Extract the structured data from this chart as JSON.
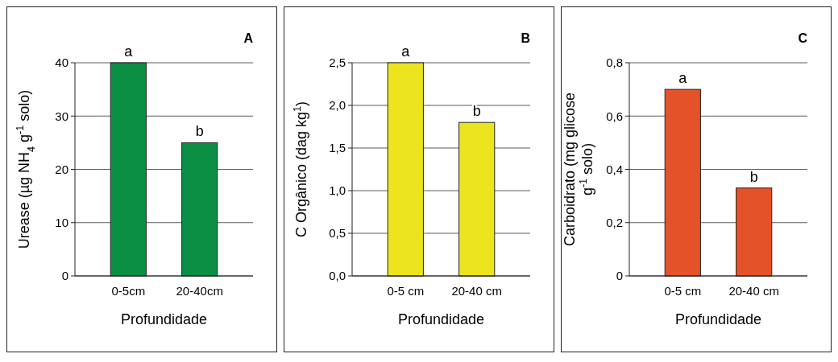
{
  "chart_data": [
    {
      "type": "bar",
      "title": "A",
      "xlabel": "Profundidade",
      "ylabel": "Urease (µg NH$_{4}$ g$^{-1}$ solo)",
      "categories": [
        "0-5cm",
        "20-40cm"
      ],
      "values": [
        40,
        25
      ],
      "color": "#0a8f45",
      "ylim": [
        0,
        40
      ],
      "yticks": [
        0,
        10,
        20,
        30,
        40
      ],
      "grid": "y",
      "annotations": [
        {
          "text": "a",
          "x": "0-5cm",
          "y": 40
        },
        {
          "text": "b",
          "x": "20-40cm",
          "y": 25
        }
      ]
    },
    {
      "type": "bar",
      "title": "B",
      "xlabel": "Profundidade",
      "ylabel": "C Orgânico (dag kg$^{1}$)",
      "categories": [
        "0-5 cm",
        "20-40 cm"
      ],
      "values": [
        2.5,
        1.8
      ],
      "color": "#ece41e",
      "ylim": [
        0,
        2.5
      ],
      "yticks": [
        {
          "value": 0,
          "label": "0,0"
        },
        {
          "value": 0.5,
          "label": "0,5"
        },
        {
          "value": 1,
          "label": "1,0"
        },
        {
          "value": 1.5,
          "label": "1,5"
        },
        {
          "value": 2,
          "label": "2,0"
        },
        {
          "value": 2.5,
          "label": "2,5"
        }
      ],
      "grid": "y",
      "annotations": [
        {
          "text": "a",
          "x": "0-5 cm",
          "y": 2.5
        },
        {
          "text": "b",
          "x": "20-40 cm",
          "y": 1.8
        }
      ]
    },
    {
      "type": "bar",
      "title": "C",
      "xlabel": "Profundidade",
      "ylabel": "Carboidrato (mg glicose g$^{-1}$ solo)",
      "categories": [
        "0-5 cm",
        "20-40 cm"
      ],
      "values": [
        0.7,
        0.33
      ],
      "color": "#e4522a",
      "ylim": [
        0,
        0.8
      ],
      "yticks": [
        {
          "value": 0,
          "label": "0"
        },
        {
          "value": 0.2,
          "label": "0,2"
        },
        {
          "value": 0.4,
          "label": "0,4"
        },
        {
          "value": 0.6,
          "label": "0,6"
        },
        {
          "value": 0.8,
          "label": "0,8"
        }
      ],
      "grid": "y",
      "annotations": [
        {
          "text": "a",
          "x": "0-5 cm",
          "y": 0.7
        },
        {
          "text": "b",
          "x": "20-40 cm",
          "y": 0.33
        }
      ]
    }
  ]
}
